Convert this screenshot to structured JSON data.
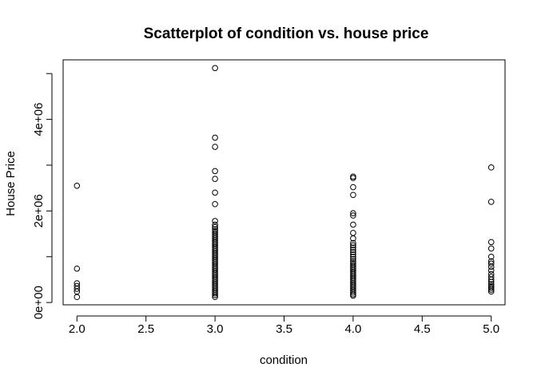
{
  "chart_data": {
    "type": "scatter",
    "title": "Scatterplot of condition vs. house price",
    "xlabel": "condition",
    "ylabel": "House Price",
    "xlim": [
      1.9,
      5.1
    ],
    "ylim": [
      -50000,
      5300000
    ],
    "x_ticks": [
      {
        "value": 2.0,
        "label": "2.0"
      },
      {
        "value": 2.5,
        "label": "2.5"
      },
      {
        "value": 3.0,
        "label": "3.0"
      },
      {
        "value": 3.5,
        "label": "3.5"
      },
      {
        "value": 4.0,
        "label": "4.0"
      },
      {
        "value": 4.5,
        "label": "4.5"
      },
      {
        "value": 5.0,
        "label": "5.0"
      }
    ],
    "y_ticks": [
      {
        "value": 0,
        "label": "0e+00"
      },
      {
        "value": 1000000,
        "label": ""
      },
      {
        "value": 2000000,
        "label": "2e+06"
      },
      {
        "value": 3000000,
        "label": ""
      },
      {
        "value": 4000000,
        "label": "4e+06"
      },
      {
        "value": 5000000,
        "label": ""
      }
    ],
    "grid": false,
    "legend": "none",
    "series": [
      {
        "points": [
          [
            2,
            2550000
          ],
          [
            2,
            740000
          ],
          [
            2,
            420000
          ],
          [
            2,
            360000
          ],
          [
            2,
            300000
          ],
          [
            2,
            240000
          ],
          [
            2,
            120000
          ],
          [
            3,
            5120000
          ],
          [
            3,
            3600000
          ],
          [
            3,
            3400000
          ],
          [
            3,
            2870000
          ],
          [
            3,
            2700000
          ],
          [
            3,
            2400000
          ],
          [
            3,
            2150000
          ],
          [
            3,
            1780000
          ],
          [
            3,
            1700000
          ],
          [
            3,
            1650000
          ],
          [
            3,
            1600000
          ],
          [
            3,
            1560000
          ],
          [
            3,
            1520000
          ],
          [
            3,
            1480000
          ],
          [
            3,
            1440000
          ],
          [
            3,
            1400000
          ],
          [
            3,
            1360000
          ],
          [
            3,
            1320000
          ],
          [
            3,
            1280000
          ],
          [
            3,
            1240000
          ],
          [
            3,
            1200000
          ],
          [
            3,
            1160000
          ],
          [
            3,
            1120000
          ],
          [
            3,
            1080000
          ],
          [
            3,
            1040000
          ],
          [
            3,
            1000000
          ],
          [
            3,
            960000
          ],
          [
            3,
            920000
          ],
          [
            3,
            880000
          ],
          [
            3,
            840000
          ],
          [
            3,
            800000
          ],
          [
            3,
            760000
          ],
          [
            3,
            720000
          ],
          [
            3,
            680000
          ],
          [
            3,
            640000
          ],
          [
            3,
            600000
          ],
          [
            3,
            560000
          ],
          [
            3,
            520000
          ],
          [
            3,
            480000
          ],
          [
            3,
            440000
          ],
          [
            3,
            400000
          ],
          [
            3,
            360000
          ],
          [
            3,
            320000
          ],
          [
            3,
            280000
          ],
          [
            3,
            240000
          ],
          [
            3,
            200000
          ],
          [
            3,
            160000
          ],
          [
            3,
            120000
          ],
          [
            4,
            2750000
          ],
          [
            4,
            2720000
          ],
          [
            4,
            2520000
          ],
          [
            4,
            2350000
          ],
          [
            4,
            1950000
          ],
          [
            4,
            1900000
          ],
          [
            4,
            1700000
          ],
          [
            4,
            1520000
          ],
          [
            4,
            1400000
          ],
          [
            4,
            1300000
          ],
          [
            4,
            1250000
          ],
          [
            4,
            1200000
          ],
          [
            4,
            1150000
          ],
          [
            4,
            1100000
          ],
          [
            4,
            1050000
          ],
          [
            4,
            1000000
          ],
          [
            4,
            950000
          ],
          [
            4,
            900000
          ],
          [
            4,
            860000
          ],
          [
            4,
            820000
          ],
          [
            4,
            780000
          ],
          [
            4,
            740000
          ],
          [
            4,
            700000
          ],
          [
            4,
            660000
          ],
          [
            4,
            620000
          ],
          [
            4,
            580000
          ],
          [
            4,
            540000
          ],
          [
            4,
            500000
          ],
          [
            4,
            460000
          ],
          [
            4,
            420000
          ],
          [
            4,
            380000
          ],
          [
            4,
            340000
          ],
          [
            4,
            300000
          ],
          [
            4,
            260000
          ],
          [
            4,
            220000
          ],
          [
            4,
            180000
          ],
          [
            4,
            150000
          ],
          [
            5,
            2950000
          ],
          [
            5,
            2200000
          ],
          [
            5,
            1320000
          ],
          [
            5,
            1180000
          ],
          [
            5,
            1000000
          ],
          [
            5,
            900000
          ],
          [
            5,
            850000
          ],
          [
            5,
            780000
          ],
          [
            5,
            700000
          ],
          [
            5,
            620000
          ],
          [
            5,
            560000
          ],
          [
            5,
            500000
          ],
          [
            5,
            450000
          ],
          [
            5,
            400000
          ],
          [
            5,
            360000
          ],
          [
            5,
            320000
          ],
          [
            5,
            280000
          ],
          [
            5,
            240000
          ]
        ]
      }
    ]
  }
}
